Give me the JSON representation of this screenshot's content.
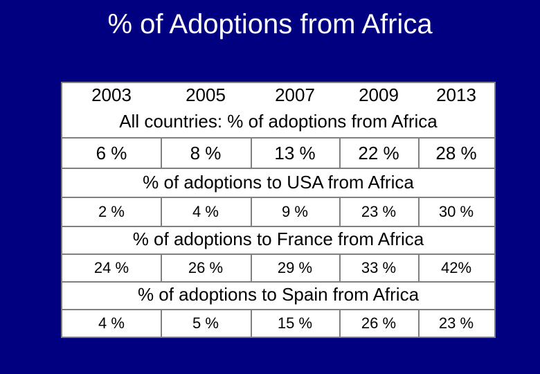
{
  "title": "% of Adoptions from Africa",
  "colors": {
    "background": "#000080",
    "title": "#ffffff",
    "cell": "#ffffff",
    "text": "#000000",
    "border": "#808080"
  },
  "table": {
    "years": [
      "2003",
      "2005",
      "2007",
      "2009",
      "2013"
    ],
    "sections": [
      {
        "label": "All countries:  % of adoptions from Africa",
        "values": [
          "6 %",
          "8 %",
          "13 %",
          "22 %",
          "28 %"
        ]
      },
      {
        "label": "% of adoptions to USA from Africa",
        "values": [
          "2 %",
          "4 %",
          "9 %",
          "23 %",
          "30 %"
        ]
      },
      {
        "label": "% of adoptions to France from Africa",
        "values": [
          "24 %",
          "26 %",
          "29 %",
          "33 %",
          "42%"
        ]
      },
      {
        "label": "% of adoptions to Spain from Africa",
        "values": [
          "4 %",
          "5 %",
          "15 %",
          "26 %",
          "23 %"
        ]
      }
    ]
  }
}
